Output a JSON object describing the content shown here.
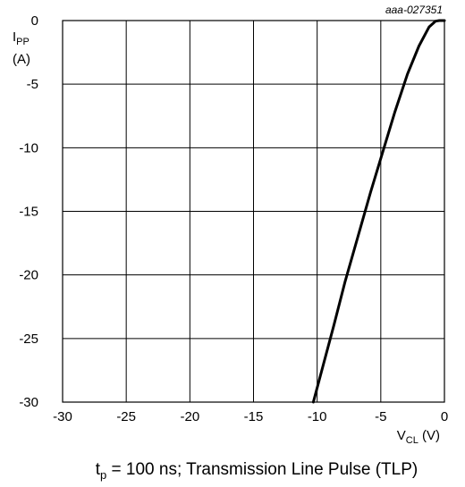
{
  "chart_data": {
    "type": "line",
    "figure_id": "aaa-027351",
    "caption": {
      "main": "t",
      "sub": "p",
      "rest": " = 100 ns; Transmission Line Pulse (TLP)"
    },
    "ylabel": {
      "main": "I",
      "sub": "PP",
      "unit": "(A)"
    },
    "xlabel": {
      "main": "V",
      "sub": "CL",
      "unit": " (V)"
    },
    "xlim": [
      -30,
      0
    ],
    "ylim": [
      -30,
      0
    ],
    "x_ticks": [
      -30,
      -25,
      -20,
      -15,
      -10,
      -5,
      0
    ],
    "y_ticks": [
      0,
      -5,
      -10,
      -15,
      -20,
      -25,
      -30
    ],
    "grid": true,
    "series": [
      {
        "color": "#000000",
        "x": [
          -10.3,
          -9.5,
          -8.7,
          -7.8,
          -6.8,
          -5.8,
          -4.9,
          -3.9,
          -2.9,
          -2.0,
          -1.2,
          -0.7,
          -0.4,
          0.0
        ],
        "y": [
          -30,
          -27,
          -24,
          -20.5,
          -17,
          -13.5,
          -10.5,
          -7.2,
          -4.2,
          -2.0,
          -0.5,
          -0.05,
          0.0,
          0.0
        ]
      }
    ]
  }
}
